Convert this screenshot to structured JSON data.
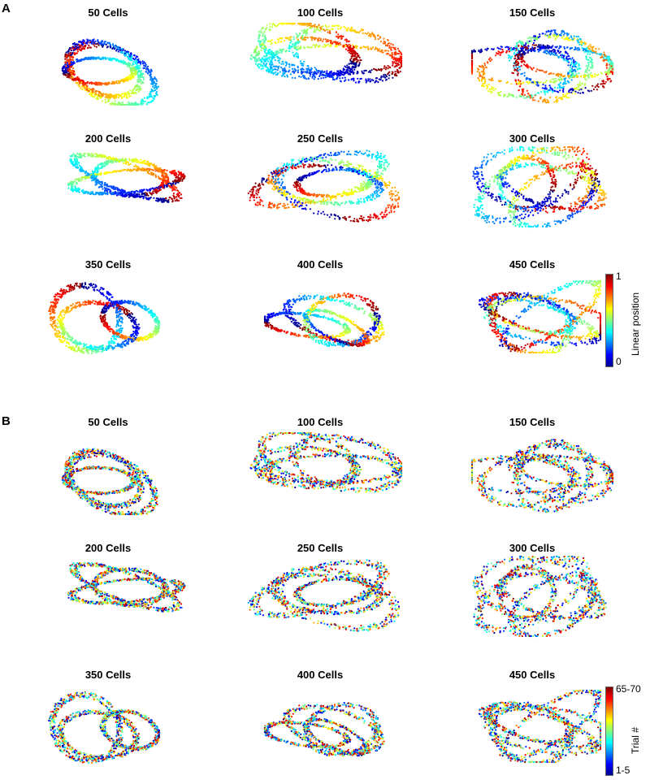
{
  "panels": [
    {
      "letter": "A",
      "colormap": "jet",
      "titles": [
        "50 Cells",
        "100 Cells",
        "150 Cells",
        "200 Cells",
        "250 Cells",
        "300 Cells",
        "350 Cells",
        "400 Cells",
        "450 Cells"
      ],
      "colorbar": {
        "max_label": "1",
        "min_label": "0",
        "label": "Linear position"
      }
    },
    {
      "letter": "B",
      "colormap": "jet",
      "titles": [
        "50 Cells",
        "100 Cells",
        "150 Cells",
        "200 Cells",
        "250 Cells",
        "300 Cells",
        "350 Cells",
        "400 Cells",
        "450 Cells"
      ],
      "colorbar": {
        "max_label": "65-70",
        "min_label": "1-5",
        "label": "Trial #"
      }
    }
  ]
}
